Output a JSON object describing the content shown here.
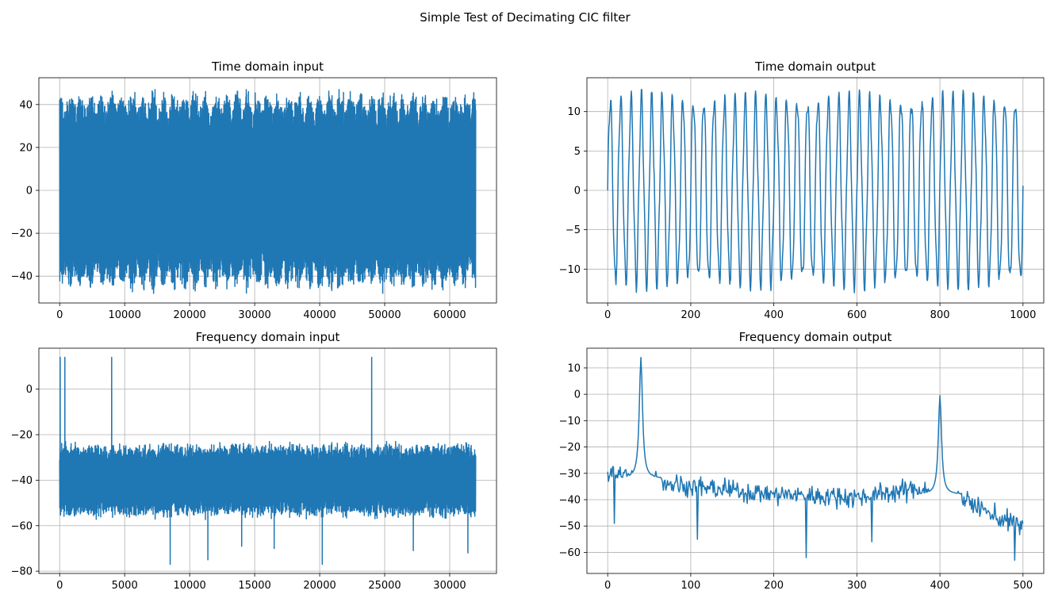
{
  "figure": {
    "suptitle": "Simple Test of Decimating CIC filter"
  },
  "chart_data": [
    {
      "type": "line",
      "title": "Time domain input",
      "xlabel": "",
      "ylabel": "",
      "xlim": [
        -3200,
        67200
      ],
      "ylim": [
        -52.5,
        52.5
      ],
      "xticks": [
        0,
        10000,
        20000,
        30000,
        40000,
        50000,
        60000
      ],
      "xtick_labels": [
        "0",
        "10000",
        "20000",
        "30000",
        "40000",
        "50000",
        "60000"
      ],
      "yticks": [
        -40,
        -20,
        0,
        20,
        40
      ],
      "ytick_labels": [
        "−40",
        "−20",
        "0",
        "20",
        "40"
      ],
      "grid": true,
      "color": "#1f77b4",
      "series": [
        {
          "description_of_signal": "dense sum of tones filling approximately -48 to 47; envelope repeats about every 1600 samples",
          "x_range": [
            0,
            64000
          ],
          "approx_min": -48,
          "approx_max": 47
        }
      ]
    },
    {
      "type": "line",
      "title": "Time domain output",
      "xlabel": "",
      "ylabel": "",
      "xlim": [
        -50,
        1050
      ],
      "ylim": [
        -14.3,
        14.3
      ],
      "xticks": [
        0,
        200,
        400,
        600,
        800,
        1000
      ],
      "xtick_labels": [
        "0",
        "200",
        "400",
        "600",
        "800",
        "1000"
      ],
      "yticks": [
        -10,
        -5,
        0,
        5,
        10
      ],
      "ytick_labels": [
        "−10",
        "−5",
        "0",
        "5",
        "10"
      ],
      "grid": true,
      "color": "#1f77b4",
      "series": [
        {
          "description_of_signal": "oscillation with period of about 25 samples, amplitude about 11 to 13, starting at 0",
          "x_range": [
            0,
            1000
          ],
          "period": 25,
          "approx_min": -13,
          "approx_max": 13
        }
      ]
    },
    {
      "type": "line",
      "title": "Frequency domain input",
      "xlabel": "",
      "ylabel": "",
      "xlim": [
        -1600,
        33600
      ],
      "ylim": [
        -81,
        18
      ],
      "xticks": [
        0,
        5000,
        10000,
        15000,
        20000,
        25000,
        30000
      ],
      "xtick_labels": [
        "0",
        "5000",
        "10000",
        "15000",
        "20000",
        "25000",
        "30000"
      ],
      "yticks": [
        -80,
        -60,
        -40,
        -20,
        0
      ],
      "ytick_labels": [
        "−80",
        "−60",
        "−40",
        "−20",
        "0"
      ],
      "grid": true,
      "color": "#1f77b4",
      "series": [
        {
          "description_of_signal": "noise floor about -40 dB with peaks at four frequencies",
          "x_range": [
            0,
            32000
          ],
          "noise_floor": -40,
          "peaks": [
            {
              "x": 40,
              "y": 14
            },
            {
              "x": 400,
              "y": 14
            },
            {
              "x": 4000,
              "y": 14
            },
            {
              "x": 24000,
              "y": 14
            }
          ],
          "minima": [
            {
              "x": 8500,
              "y": -77
            },
            {
              "x": 20200,
              "y": -77
            },
            {
              "x": 11400,
              "y": -75
            },
            {
              "x": 31400,
              "y": -72
            },
            {
              "x": 27200,
              "y": -71
            },
            {
              "x": 16500,
              "y": -70
            },
            {
              "x": 14000,
              "y": -69
            }
          ]
        }
      ]
    },
    {
      "type": "line",
      "title": "Frequency domain output",
      "xlabel": "",
      "ylabel": "",
      "xlim": [
        -25,
        525
      ],
      "ylim": [
        -68,
        17.5
      ],
      "xticks": [
        0,
        100,
        200,
        300,
        400,
        500
      ],
      "xtick_labels": [
        "0",
        "100",
        "200",
        "300",
        "400",
        "500"
      ],
      "yticks": [
        -60,
        -50,
        -40,
        -30,
        -20,
        -10,
        0,
        10
      ],
      "ytick_labels": [
        "−60",
        "−50",
        "−40",
        "−30",
        "−20",
        "−10",
        "0",
        "10"
      ],
      "grid": true,
      "color": "#1f77b4",
      "series": [
        {
          "description_of_signal": "spectrum with peaks at 40 and 400, noisy floor sloping down toward 500",
          "x_range": [
            0,
            500
          ],
          "peaks": [
            {
              "x": 40,
              "y": 14
            },
            {
              "x": 400,
              "y": -0.5
            }
          ],
          "floor_trend": [
            {
              "x": 0,
              "y": -30
            },
            {
              "x": 100,
              "y": -35
            },
            {
              "x": 200,
              "y": -38
            },
            {
              "x": 300,
              "y": -39
            },
            {
              "x": 370,
              "y": -36
            },
            {
              "x": 430,
              "y": -40
            },
            {
              "x": 470,
              "y": -47
            },
            {
              "x": 500,
              "y": -50
            }
          ],
          "minima": [
            {
              "x": 239,
              "y": -62
            },
            {
              "x": 490,
              "y": -63
            },
            {
              "x": 108,
              "y": -55
            },
            {
              "x": 318,
              "y": -56
            },
            {
              "x": 8,
              "y": -49
            }
          ]
        }
      ]
    }
  ]
}
